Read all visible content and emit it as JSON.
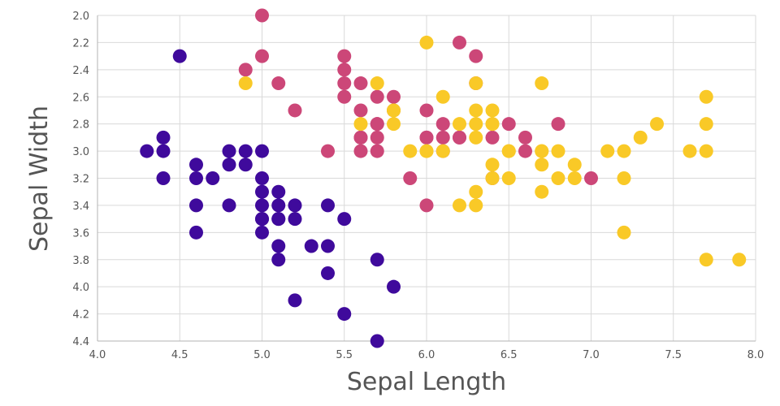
{
  "chart_data": {
    "type": "scatter",
    "title": "",
    "xlabel": "Sepal Length",
    "ylabel": "Sepal Width",
    "xlim": [
      4.0,
      8.0
    ],
    "ylim": [
      2.0,
      4.4
    ],
    "y_inverted": true,
    "grid": true,
    "legend": "none",
    "x_ticks": [
      "4.0",
      "4.5",
      "5.0",
      "5.5",
      "6.0",
      "6.5",
      "7.0",
      "7.5",
      "8.0"
    ],
    "y_ticks": [
      "2.0",
      "2.2",
      "2.4",
      "2.6",
      "2.8",
      "3.0",
      "3.2",
      "3.4",
      "3.6",
      "3.8",
      "4.0",
      "4.2",
      "4.4"
    ],
    "series": [
      {
        "color": "#3f0a9c",
        "x": [
          4.5,
          4.3,
          4.4,
          4.4,
          4.4,
          4.6,
          4.6,
          4.6,
          4.6,
          4.7,
          4.8,
          4.8,
          4.8,
          4.9,
          4.9,
          5.0,
          5.0,
          5.0,
          5.0,
          5.0,
          5.0,
          5.0,
          5.1,
          5.1,
          5.1,
          5.1,
          5.1,
          5.1,
          5.2,
          5.2,
          5.2,
          5.3,
          5.4,
          5.4,
          5.4,
          5.5,
          5.5,
          5.7,
          5.7,
          5.8
        ],
        "y": [
          2.3,
          3.0,
          2.9,
          3.0,
          3.2,
          3.1,
          3.2,
          3.4,
          3.6,
          3.2,
          3.0,
          3.1,
          3.4,
          3.0,
          3.1,
          3.0,
          3.2,
          3.3,
          3.4,
          3.5,
          3.6,
          3.5,
          3.3,
          3.4,
          3.5,
          3.7,
          3.8,
          3.5,
          3.4,
          3.5,
          4.1,
          3.7,
          3.4,
          3.7,
          3.9,
          3.5,
          4.2,
          3.8,
          4.4,
          4.0
        ]
      },
      {
        "color": "#cc4778",
        "x": [
          4.9,
          5.0,
          5.0,
          5.1,
          5.2,
          5.4,
          5.5,
          5.5,
          5.5,
          5.5,
          5.6,
          5.6,
          5.6,
          5.6,
          5.6,
          5.7,
          5.7,
          5.7,
          5.7,
          5.7,
          5.8,
          5.8,
          5.9,
          6.0,
          6.0,
          6.0,
          6.0,
          6.1,
          6.1,
          6.1,
          6.2,
          6.2,
          6.2,
          6.3,
          6.3,
          6.4,
          6.4,
          6.5,
          6.6,
          6.6,
          6.8,
          7.0
        ],
        "y": [
          2.4,
          2.0,
          2.3,
          2.5,
          2.7,
          3.0,
          2.3,
          2.4,
          2.5,
          2.6,
          2.5,
          2.7,
          2.9,
          3.0,
          2.9,
          2.6,
          2.8,
          2.9,
          3.0,
          2.8,
          2.6,
          2.7,
          3.2,
          2.7,
          2.9,
          3.4,
          2.9,
          2.8,
          2.9,
          3.0,
          2.2,
          2.9,
          2.9,
          2.3,
          2.5,
          2.9,
          3.2,
          2.8,
          2.9,
          3.0,
          2.8,
          3.2
        ]
      },
      {
        "color": "#f9c927",
        "x": [
          4.9,
          5.6,
          5.7,
          5.8,
          5.8,
          5.8,
          5.9,
          6.0,
          6.0,
          6.0,
          6.1,
          6.1,
          6.2,
          6.2,
          6.3,
          6.3,
          6.3,
          6.3,
          6.3,
          6.3,
          6.4,
          6.4,
          6.4,
          6.4,
          6.4,
          6.5,
          6.5,
          6.5,
          6.7,
          6.7,
          6.7,
          6.7,
          6.7,
          6.8,
          6.8,
          6.9,
          6.9,
          7.1,
          7.2,
          7.2,
          7.2,
          7.3,
          7.4,
          7.6,
          7.7,
          7.7,
          7.7,
          7.7,
          7.9
        ],
        "y": [
          2.5,
          2.8,
          2.5,
          2.7,
          2.8,
          2.7,
          3.0,
          2.2,
          3.0,
          3.0,
          2.6,
          3.0,
          2.8,
          3.4,
          2.5,
          2.7,
          2.8,
          2.9,
          3.3,
          3.4,
          2.7,
          2.8,
          3.1,
          3.2,
          2.8,
          3.0,
          3.2,
          3.0,
          2.5,
          3.0,
          3.1,
          3.3,
          3.0,
          3.0,
          3.2,
          3.1,
          3.2,
          3.0,
          3.0,
          3.2,
          3.6,
          2.9,
          2.8,
          3.0,
          2.6,
          2.8,
          3.0,
          3.8,
          3.8
        ]
      }
    ]
  }
}
